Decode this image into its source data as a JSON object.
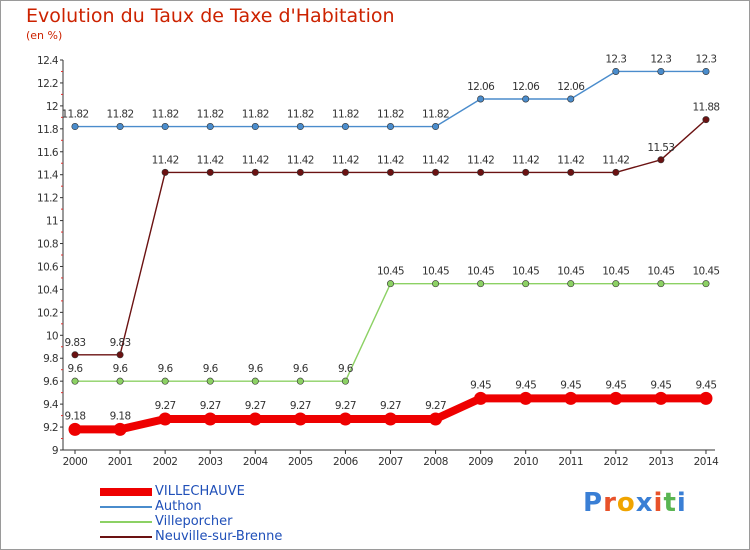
{
  "title": "Evolution du Taux de Taxe d'Habitation",
  "subtitle": "(en %)",
  "logo": {
    "text": "Proxiti",
    "letter_colors": [
      "#3a7fd5",
      "#e8522a",
      "#f0a400",
      "#3a7fd5",
      "#e8522a",
      "#5ab552",
      "#3a7fd5"
    ]
  },
  "chart_data": {
    "type": "line",
    "title": "Evolution du Taux de Taxe d'Habitation",
    "ylabel": "(en %)",
    "xlabel": "",
    "ylim": [
      9,
      12.4
    ],
    "y_ticks": [
      "9",
      "9.2",
      "9.4",
      "9.6",
      "9.8",
      "10",
      "10.2",
      "10.4",
      "10.6",
      "10.8",
      "11",
      "11.2",
      "11.4",
      "11.6",
      "11.8",
      "12",
      "12.2",
      "12.4"
    ],
    "grid": false,
    "legend_position": "bottom-left",
    "x": [
      "2000",
      "2001",
      "2002",
      "2003",
      "2004",
      "2005",
      "2006",
      "2007",
      "2008",
      "2009",
      "2010",
      "2011",
      "2012",
      "2013",
      "2014"
    ],
    "series": [
      {
        "name": "Neuville-sur-Brenne",
        "color": "#6b1212",
        "values": [
          9.83,
          9.83,
          11.42,
          11.42,
          11.42,
          11.42,
          11.42,
          11.42,
          11.42,
          11.42,
          11.42,
          11.42,
          11.42,
          11.53,
          11.88
        ],
        "labels": [
          "9.83",
          "9.83",
          "11.42",
          "11.42",
          "11.42",
          "11.42",
          "11.42",
          "11.42",
          "11.42",
          "11.42",
          "11.42",
          "11.42",
          "11.42",
          "11.53",
          "11.88"
        ]
      },
      {
        "name": "Villeporcher",
        "color": "#8cd164",
        "values": [
          9.6,
          9.6,
          9.6,
          9.6,
          9.6,
          9.6,
          9.6,
          10.45,
          10.45,
          10.45,
          10.45,
          10.45,
          10.45,
          10.45,
          10.45
        ],
        "labels": [
          "9.6",
          "9.6",
          "9.6",
          "9.6",
          "9.6",
          "9.6",
          "9.6",
          "10.45",
          "10.45",
          "10.45",
          "10.45",
          "10.45",
          "10.45",
          "10.45",
          "10.45"
        ]
      },
      {
        "name": "Authon",
        "color": "#4a8ccc",
        "values": [
          11.82,
          11.82,
          11.82,
          11.82,
          11.82,
          11.82,
          11.82,
          11.82,
          11.82,
          12.06,
          12.06,
          12.06,
          12.3,
          12.3,
          12.3
        ],
        "labels": [
          "11.82",
          "11.82",
          "11.82",
          "11.82",
          "11.82",
          "11.82",
          "11.82",
          "11.82",
          "11.82",
          "12.06",
          "12.06",
          "12.06",
          "12.3",
          "12.3",
          "12.3"
        ]
      },
      {
        "name": "VILLECHAUVE",
        "color": "#ee0000",
        "values": [
          9.18,
          9.18,
          9.27,
          9.27,
          9.27,
          9.27,
          9.27,
          9.27,
          9.27,
          9.45,
          9.45,
          9.45,
          9.45,
          9.45,
          9.45
        ],
        "labels": [
          "9.18",
          "9.18",
          "9.27",
          "9.27",
          "9.27",
          "9.27",
          "9.27",
          "9.27",
          "9.27",
          "9.45",
          "9.45",
          "9.45",
          "9.45",
          "9.45",
          "9.45"
        ]
      }
    ],
    "legend": [
      "VILLECHAUVE",
      "Authon",
      "Villeporcher",
      "Neuville-sur-Brenne"
    ]
  }
}
